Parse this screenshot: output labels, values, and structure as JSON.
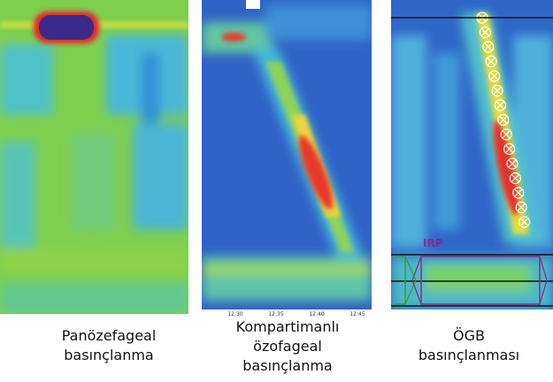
{
  "captions": [
    {
      "lines": [
        "Panözefageal",
        "basınçlanma"
      ]
    },
    {
      "lines": [
        "Kompartimanlı",
        "özofageal",
        "basınçlanma"
      ]
    },
    {
      "lines": [
        "ÖGB",
        "basınçlanması"
      ]
    }
  ],
  "time_axis": {
    "ticks": [
      "12:30",
      "12:35",
      "12:40",
      "12:45"
    ]
  },
  "irp_label": "IRP"
}
